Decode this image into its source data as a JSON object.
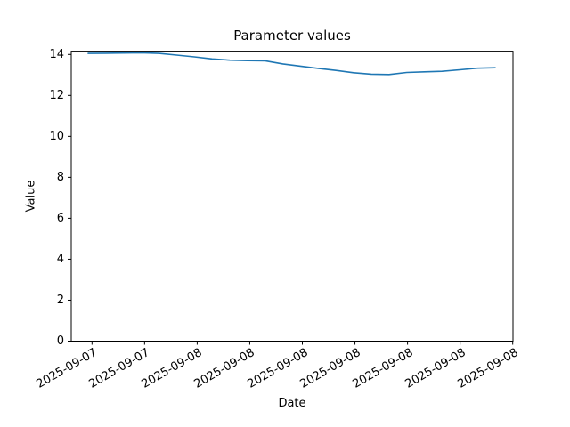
{
  "figure": {
    "background": "#ffffff",
    "spine_color": "#000000",
    "text_color": "#000000"
  },
  "chart_data": {
    "type": "line",
    "title": "Parameter values",
    "xlabel": "Date",
    "ylabel": "Value",
    "grid": false,
    "legend": false,
    "ylim": [
      0,
      14.16
    ],
    "y_ticks": [
      0,
      2,
      4,
      6,
      8,
      10,
      12,
      14
    ],
    "y_tick_labels": [
      "0",
      "2",
      "4",
      "6",
      "8",
      "10",
      "12",
      "14"
    ],
    "x_tick_labels": [
      "2025-09-07",
      "2025-09-07",
      "2025-09-08",
      "2025-09-08",
      "2025-09-08",
      "2025-09-08",
      "2025-09-08",
      "2025-09-08",
      "2025-09-08"
    ],
    "series": [
      {
        "name": "parameter-values-line",
        "color": "#1f77b4",
        "values": [
          14.05,
          14.06,
          14.07,
          14.08,
          14.05,
          13.97,
          13.88,
          13.78,
          13.72,
          13.7,
          13.69,
          13.54,
          13.43,
          13.32,
          13.22,
          13.11,
          13.04,
          13.02,
          13.12,
          13.15,
          13.18,
          13.25,
          13.33,
          13.35
        ]
      }
    ]
  }
}
